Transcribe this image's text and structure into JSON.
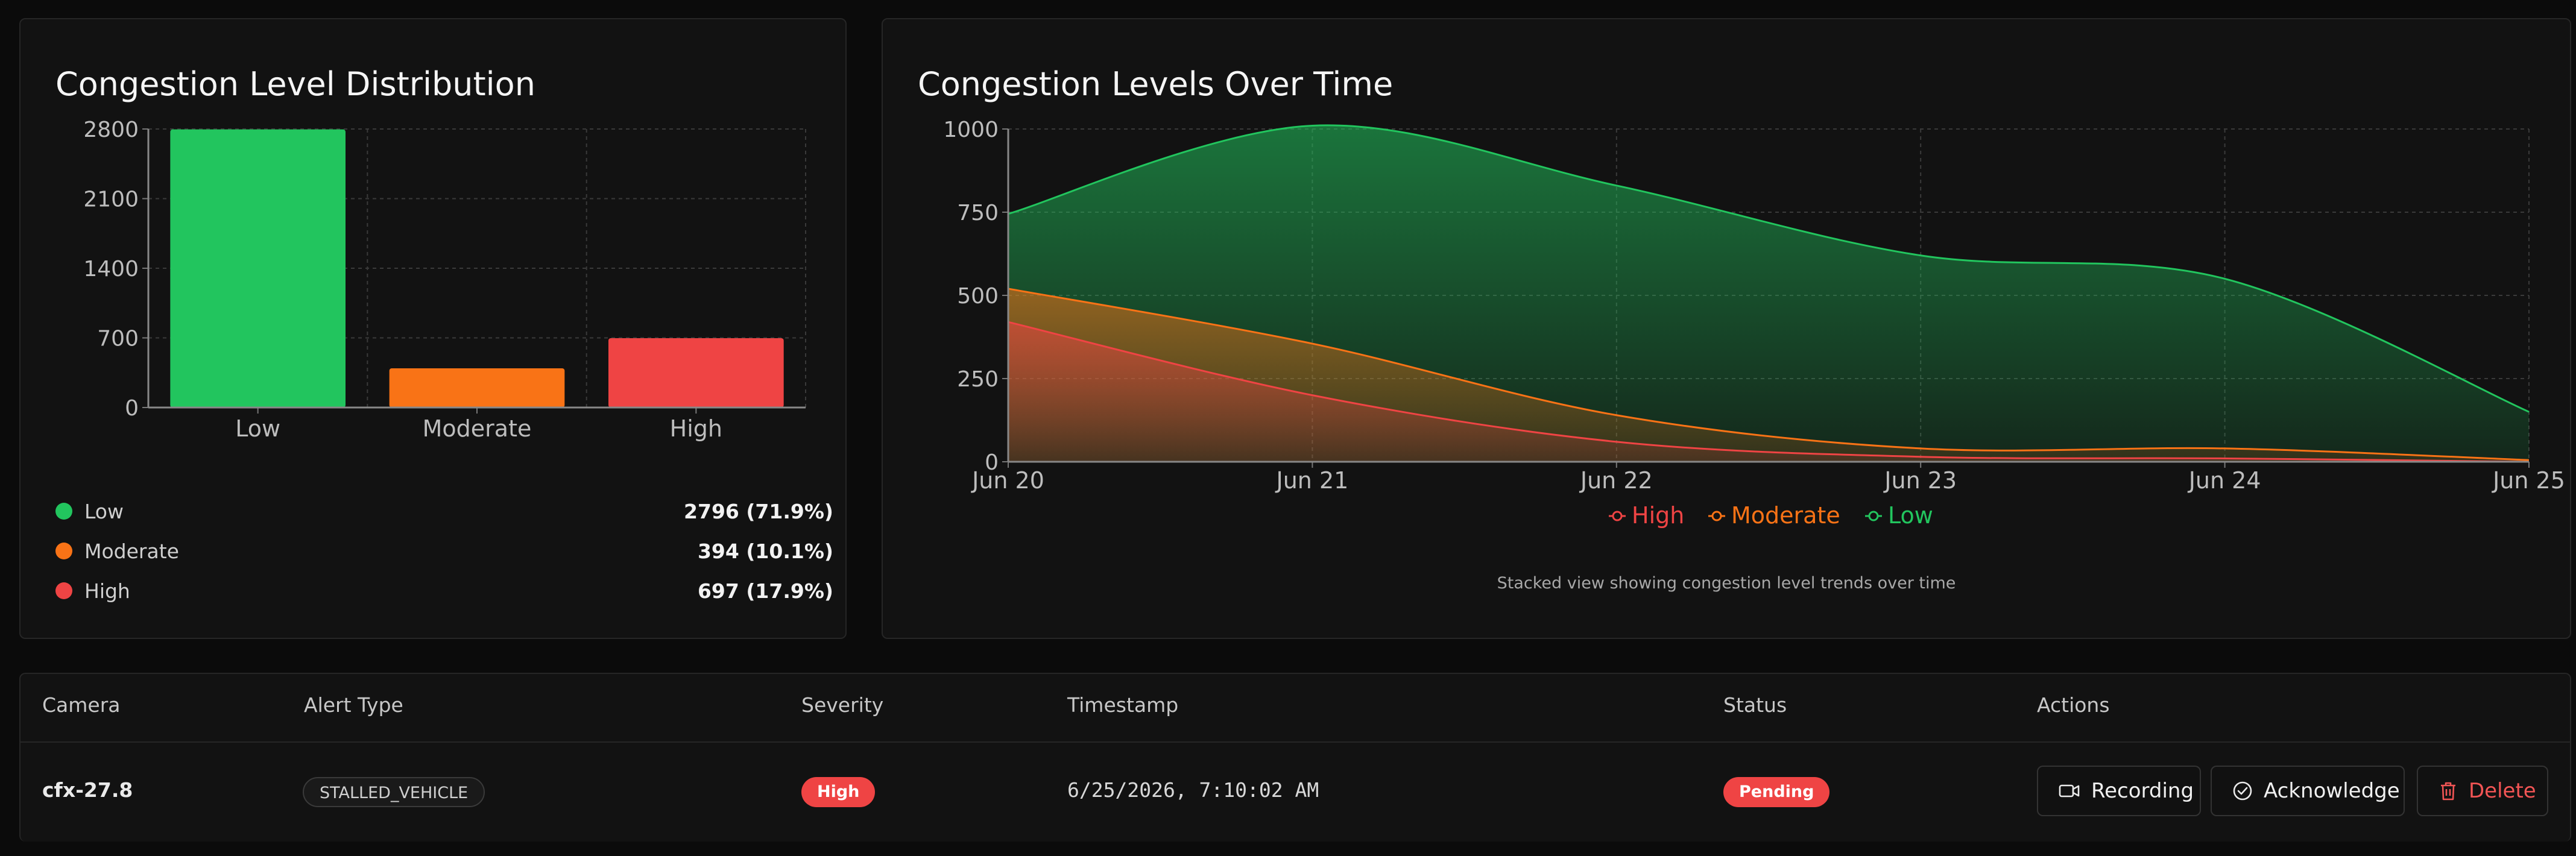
{
  "distribution_card": {
    "title": "Congestion Level Distribution",
    "legend": [
      {
        "label": "Low",
        "value": "2796 (71.9%)",
        "color": "#22c55e"
      },
      {
        "label": "Moderate",
        "value": "394 (10.1%)",
        "color": "#f97316"
      },
      {
        "label": "High",
        "value": "697 (17.9%)",
        "color": "#ef4444"
      }
    ]
  },
  "timeline_card": {
    "title": "Congestion Levels Over Time",
    "legend": [
      {
        "label": "High",
        "color": "#ef4444"
      },
      {
        "label": "Moderate",
        "color": "#f97316"
      },
      {
        "label": "Low",
        "color": "#22c55e"
      }
    ],
    "caption": "Stacked view showing congestion level trends over time"
  },
  "chart_data": [
    {
      "type": "bar",
      "title": "Congestion Level Distribution",
      "categories": [
        "Low",
        "Moderate",
        "High"
      ],
      "values": [
        2796,
        394,
        697
      ],
      "colors": [
        "#22c55e",
        "#f97316",
        "#ef4444"
      ],
      "ylim": [
        0,
        2800
      ],
      "yticks": [
        0,
        700,
        1400,
        2100,
        2800
      ],
      "grid": true
    },
    {
      "type": "area",
      "stacked": true,
      "title": "Congestion Levels Over Time",
      "x": [
        "Jun 20",
        "Jun 21",
        "Jun 22",
        "Jun 23",
        "Jun 24",
        "Jun 25"
      ],
      "series": [
        {
          "name": "High",
          "color": "#ef4444",
          "values": [
            420,
            200,
            60,
            15,
            10,
            0
          ]
        },
        {
          "name": "Moderate",
          "color": "#f97316",
          "values": [
            100,
            155,
            80,
            25,
            30,
            5
          ]
        },
        {
          "name": "Low",
          "color": "#22c55e",
          "values": [
            225,
            655,
            690,
            580,
            510,
            145
          ]
        }
      ],
      "ylim": [
        0,
        1000
      ],
      "yticks": [
        0,
        250,
        500,
        750,
        1000
      ],
      "grid": true,
      "legend_position": "bottom"
    }
  ],
  "table": {
    "headers": {
      "camera": "Camera",
      "alert_type": "Alert Type",
      "severity": "Severity",
      "timestamp": "Timestamp",
      "status": "Status",
      "actions": "Actions"
    },
    "rows": [
      {
        "camera": "cfx-27.8",
        "alert_type": "STALLED_VEHICLE",
        "severity": "High",
        "timestamp": "6/25/2026, 7:10:02 AM",
        "status": "Pending",
        "actions": {
          "recording": "Recording",
          "acknowledge": "Acknowledge",
          "delete": "Delete"
        }
      }
    ]
  },
  "icons": {
    "recording": "video-camera-icon",
    "acknowledge": "check-circle-icon",
    "delete": "trash-icon"
  }
}
